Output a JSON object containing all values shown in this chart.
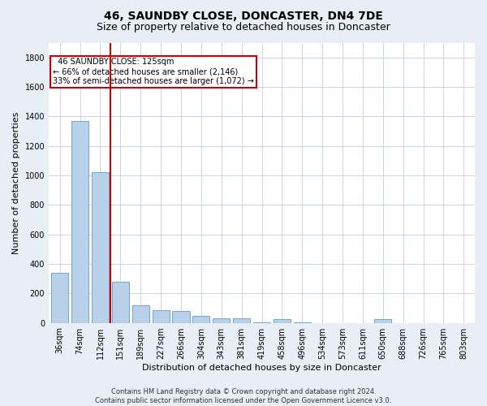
{
  "title": "46, SAUNDBY CLOSE, DONCASTER, DN4 7DE",
  "subtitle": "Size of property relative to detached houses in Doncaster",
  "xlabel": "Distribution of detached houses by size in Doncaster",
  "ylabel": "Number of detached properties",
  "footer_line1": "Contains HM Land Registry data © Crown copyright and database right 2024.",
  "footer_line2": "Contains public sector information licensed under the Open Government Licence v3.0.",
  "annotation_line1": "  46 SAUNDBY CLOSE: 125sqm",
  "annotation_line2": "← 66% of detached houses are smaller (2,146)",
  "annotation_line3": "33% of semi-detached houses are larger (1,072) →",
  "bar_color": "#b8d0e8",
  "bar_edge_color": "#6aaad4",
  "vline_color": "#cc0000",
  "categories": [
    "36sqm",
    "74sqm",
    "112sqm",
    "151sqm",
    "189sqm",
    "227sqm",
    "266sqm",
    "304sqm",
    "343sqm",
    "381sqm",
    "419sqm",
    "458sqm",
    "496sqm",
    "534sqm",
    "573sqm",
    "611sqm",
    "650sqm",
    "688sqm",
    "726sqm",
    "765sqm",
    "803sqm"
  ],
  "values": [
    340,
    1370,
    1020,
    280,
    120,
    85,
    80,
    50,
    30,
    30,
    5,
    25,
    5,
    0,
    0,
    0,
    25,
    0,
    0,
    0,
    0
  ],
  "ylim": [
    0,
    1900
  ],
  "yticks": [
    0,
    200,
    400,
    600,
    800,
    1000,
    1200,
    1400,
    1600,
    1800
  ],
  "bg_color": "#e8eef5",
  "plot_bg_color": "#ffffff",
  "grid_color": "#c8d4e0",
  "title_fontsize": 10,
  "subtitle_fontsize": 9,
  "ylabel_fontsize": 8,
  "xlabel_fontsize": 8,
  "tick_fontsize": 7,
  "annotation_box_color": "#ffffff",
  "annotation_box_edge": "#cc0000",
  "annotation_fontsize": 7,
  "footer_fontsize": 6
}
